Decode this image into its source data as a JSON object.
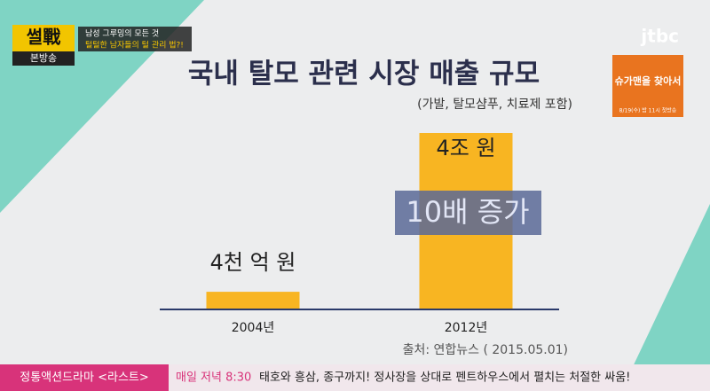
{
  "chart_data": {
    "type": "bar",
    "title": "국내 탈모 관련 시장 매출 규모",
    "subtitle": "(가발, 탈모샴푸, 치료제 포함)",
    "categories": [
      "2004년",
      "2012년"
    ],
    "values": [
      4000,
      40000
    ],
    "value_labels": [
      "4천 억 원",
      "4조 원"
    ],
    "color": "#f8b522",
    "annotation": "10배 증가",
    "source": "출처: 연합뉴스 ( 2015.05.01)"
  },
  "overlay": {
    "logo": "썰戰",
    "logo_sub": "본방송",
    "topic_line1": "남성 그루밍의 모든 것",
    "topic_line2": "털털한 남자들의 털 관리 법?!",
    "channel": "jtbc",
    "promo_title": "슈가맨을 찾아서",
    "promo_time": "8/19(수) 밤 11시 첫방송",
    "ticker_label": "정통액션드라마 <라스트>",
    "ticker_time": "매일 저녁 8:30",
    "ticker_text": "태호와 흥삼, 종구까지! 정사장을 상대로 펜트하우스에서 펼치는 처절한 싸움!"
  }
}
